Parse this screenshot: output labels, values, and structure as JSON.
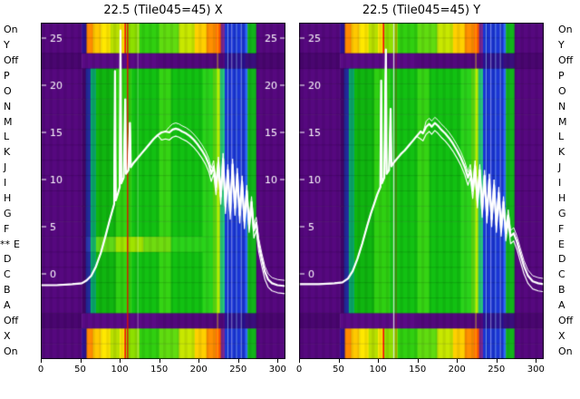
{
  "chart_data": {
    "type": "heatmap",
    "background": "#ffffff",
    "curve_color": "#ffffff",
    "x_range": [
      0,
      310
    ],
    "value_range": [
      -2,
      26
    ],
    "value_axis_ticks": [
      25,
      20,
      15,
      10,
      5,
      0
    ],
    "star_marker": "**",
    "starred_row_index": 14,
    "rows": [
      {
        "label": "On",
        "type": "hot"
      },
      {
        "label": "Y",
        "type": "hot"
      },
      {
        "label": "Off",
        "type": "off"
      },
      {
        "label": "P",
        "type": "normal"
      },
      {
        "label": "O",
        "type": "normal"
      },
      {
        "label": "N",
        "type": "normal"
      },
      {
        "label": "M",
        "type": "normal"
      },
      {
        "label": "L",
        "type": "normal"
      },
      {
        "label": "K",
        "type": "normal"
      },
      {
        "label": "J",
        "type": "normal"
      },
      {
        "label": "I",
        "type": "normal"
      },
      {
        "label": "H",
        "type": "normal"
      },
      {
        "label": "G",
        "type": "normal"
      },
      {
        "label": "F",
        "type": "normal"
      },
      {
        "label": "E",
        "type": "normal"
      },
      {
        "label": "D",
        "type": "normal"
      },
      {
        "label": "C",
        "type": "normal"
      },
      {
        "label": "B",
        "type": "normal"
      },
      {
        "label": "A",
        "type": "normal"
      },
      {
        "label": "Off",
        "type": "off"
      },
      {
        "label": "X",
        "type": "hot"
      },
      {
        "label": "On",
        "type": "hot"
      }
    ],
    "segment_maps": {
      "normal": [
        [
          0,
          52,
          "#56087f"
        ],
        [
          52,
          57,
          "#3f0566"
        ],
        [
          57,
          63,
          "#232a9c"
        ],
        [
          63,
          70,
          "#0aa86c"
        ],
        [
          70,
          95,
          "#10b510"
        ],
        [
          95,
          115,
          "#2fd012"
        ],
        [
          115,
          150,
          "#12c112"
        ],
        [
          150,
          165,
          "#35d414"
        ],
        [
          165,
          205,
          "#12c112"
        ],
        [
          205,
          218,
          "#2ad31a"
        ],
        [
          218,
          224,
          "#5cdc12"
        ],
        [
          224,
          227,
          "#a8e800"
        ],
        [
          227,
          233,
          "#28c87c"
        ],
        [
          233,
          259,
          "#1a35d4"
        ],
        [
          259,
          262,
          "#2e6cf0"
        ],
        [
          262,
          273,
          "#12b51a"
        ],
        [
          273,
          310,
          "#56087f"
        ]
      ],
      "hot": [
        [
          0,
          52,
          "#56087f"
        ],
        [
          52,
          58,
          "#2a1190"
        ],
        [
          58,
          66,
          "#ff8a00"
        ],
        [
          66,
          76,
          "#ffc800"
        ],
        [
          76,
          88,
          "#ffe800"
        ],
        [
          88,
          100,
          "#b8e000"
        ],
        [
          100,
          106,
          "#ffe800"
        ],
        [
          106,
          108,
          "#f01000"
        ],
        [
          108,
          125,
          "#8ee000"
        ],
        [
          125,
          150,
          "#30d010"
        ],
        [
          150,
          175,
          "#60dc10"
        ],
        [
          175,
          195,
          "#c8e800"
        ],
        [
          195,
          210,
          "#ffd000"
        ],
        [
          210,
          222,
          "#ff9000"
        ],
        [
          222,
          228,
          "#ff5a00"
        ],
        [
          228,
          233,
          "#7a2890"
        ],
        [
          233,
          259,
          "#1a35d4"
        ],
        [
          259,
          262,
          "#2e6cf0"
        ],
        [
          262,
          273,
          "#12b51a"
        ],
        [
          273,
          310,
          "#56087f"
        ]
      ],
      "off": [
        [
          0,
          52,
          "#4a0670"
        ],
        [
          52,
          150,
          "#5a0a86"
        ],
        [
          150,
          233,
          "#52087c"
        ],
        [
          233,
          259,
          "#2a1190"
        ],
        [
          259,
          273,
          "#3a0f7c"
        ],
        [
          273,
          310,
          "#4a0670"
        ]
      ],
      "bright": [
        [
          0,
          52,
          "#56087f"
        ],
        [
          52,
          57,
          "#3f0566"
        ],
        [
          57,
          63,
          "#2a38b0"
        ],
        [
          63,
          70,
          "#18b86c"
        ],
        [
          70,
          95,
          "#60d818"
        ],
        [
          95,
          130,
          "#a0e400"
        ],
        [
          130,
          165,
          "#70dc10"
        ],
        [
          165,
          205,
          "#2ad31a"
        ],
        [
          205,
          218,
          "#2ad31a"
        ],
        [
          218,
          224,
          "#5cdc12"
        ],
        [
          224,
          227,
          "#a8e800"
        ],
        [
          227,
          233,
          "#28c87c"
        ],
        [
          233,
          259,
          "#1a35d4"
        ],
        [
          259,
          262,
          "#2e6cf0"
        ],
        [
          262,
          273,
          "#12b51a"
        ],
        [
          273,
          310,
          "#56087f"
        ]
      ]
    },
    "panels": [
      {
        "title": "22.5 (Tile045=45) X",
        "x_ticks": [
          0,
          50,
          100,
          150,
          200,
          250,
          300
        ],
        "inner_y_ticks": [
          25,
          20,
          15,
          10,
          5,
          0
        ],
        "right_edge_ticks": [
          25,
          20,
          15,
          10
        ],
        "row_overrides": {
          "14": "bright"
        },
        "vlines": [
          {
            "x": 110,
            "color": "#e01000",
            "alpha": 0.85,
            "width": 1.6
          },
          {
            "x": 123,
            "color": "#ffffff",
            "alpha": 0.35,
            "width": 1
          },
          {
            "x": 224,
            "color": "#fff200",
            "alpha": 0.5,
            "width": 1.2
          },
          {
            "x": 237,
            "color": "#a8dcff",
            "alpha": 0.6,
            "width": 1
          },
          {
            "x": 242,
            "color": "#ffffff",
            "alpha": 0.45,
            "width": 1
          },
          {
            "x": 248,
            "color": "#a8dcff",
            "alpha": 0.55,
            "width": 1
          },
          {
            "x": 254,
            "color": "#e0f4ff",
            "alpha": 0.5,
            "width": 1
          }
        ],
        "curve": [
          [
            0,
            -1.2
          ],
          [
            20,
            -1.2
          ],
          [
            40,
            -1.1
          ],
          [
            52,
            -1.0
          ],
          [
            58,
            -0.7
          ],
          [
            64,
            -0.2
          ],
          [
            70,
            0.8
          ],
          [
            76,
            2.2
          ],
          [
            82,
            4.0
          ],
          [
            87,
            5.6
          ],
          [
            91,
            6.8
          ],
          [
            93,
            7.4
          ],
          [
            94,
            21.5
          ],
          [
            95,
            7.8
          ],
          [
            98,
            8.6
          ],
          [
            100,
            9.2
          ],
          [
            101,
            25.8
          ],
          [
            102,
            9.6
          ],
          [
            105,
            10.2
          ],
          [
            107,
            18.5
          ],
          [
            108,
            10.6
          ],
          [
            111,
            11.0
          ],
          [
            113,
            16.0
          ],
          [
            114,
            11.3
          ],
          [
            117,
            11.7
          ],
          [
            120,
            12.0
          ],
          [
            124,
            12.4
          ],
          [
            128,
            12.8
          ],
          [
            133,
            13.3
          ],
          [
            138,
            13.8
          ],
          [
            143,
            14.3
          ],
          [
            148,
            14.7
          ],
          [
            153,
            15.0
          ],
          [
            158,
            15.1
          ],
          [
            163,
            15.0
          ],
          [
            167,
            15.3
          ],
          [
            171,
            15.4
          ],
          [
            175,
            15.3
          ],
          [
            179,
            15.1
          ],
          [
            184,
            14.9
          ],
          [
            189,
            14.6
          ],
          [
            194,
            14.2
          ],
          [
            199,
            13.7
          ],
          [
            204,
            13.1
          ],
          [
            209,
            12.4
          ],
          [
            213,
            11.6
          ],
          [
            216,
            10.6
          ],
          [
            219,
            11.4
          ],
          [
            222,
            9.2
          ],
          [
            225,
            11.8
          ],
          [
            228,
            8.2
          ],
          [
            231,
            12.2
          ],
          [
            234,
            7.2
          ],
          [
            237,
            11.0
          ],
          [
            240,
            6.6
          ],
          [
            243,
            11.6
          ],
          [
            246,
            7.0
          ],
          [
            249,
            10.6
          ],
          [
            252,
            6.2
          ],
          [
            255,
            9.8
          ],
          [
            258,
            5.6
          ],
          [
            261,
            8.8
          ],
          [
            264,
            5.2
          ],
          [
            267,
            7.6
          ],
          [
            270,
            4.6
          ],
          [
            273,
            5.4
          ],
          [
            276,
            3.2
          ],
          [
            280,
            1.6
          ],
          [
            284,
            0.2
          ],
          [
            288,
            -0.6
          ],
          [
            293,
            -1.0
          ],
          [
            300,
            -1.2
          ],
          [
            310,
            -1.3
          ]
        ]
      },
      {
        "title": "22.5 (Tile045=45) Y",
        "x_ticks": [
          0,
          50,
          100,
          150,
          200,
          250,
          300
        ],
        "inner_y_ticks": [
          25,
          20,
          15,
          10,
          5,
          0
        ],
        "right_edge_ticks": [],
        "row_overrides": {},
        "vlines": [
          {
            "x": 120,
            "color": "#f0f0f0",
            "alpha": 0.8,
            "width": 1.4
          },
          {
            "x": 123,
            "color": "#d01000",
            "alpha": 0.45,
            "width": 1
          },
          {
            "x": 224,
            "color": "#fff200",
            "alpha": 0.5,
            "width": 1.2
          },
          {
            "x": 237,
            "color": "#a8dcff",
            "alpha": 0.6,
            "width": 1
          },
          {
            "x": 243,
            "color": "#ffffff",
            "alpha": 0.45,
            "width": 1
          },
          {
            "x": 249,
            "color": "#a8dcff",
            "alpha": 0.55,
            "width": 1
          },
          {
            "x": 255,
            "color": "#e0f4ff",
            "alpha": 0.5,
            "width": 1
          }
        ],
        "curve": [
          [
            0,
            -1.1
          ],
          [
            25,
            -1.1
          ],
          [
            45,
            -1.0
          ],
          [
            55,
            -0.9
          ],
          [
            62,
            -0.5
          ],
          [
            68,
            0.3
          ],
          [
            74,
            1.6
          ],
          [
            80,
            3.2
          ],
          [
            86,
            5.0
          ],
          [
            91,
            6.4
          ],
          [
            95,
            7.4
          ],
          [
            99,
            8.4
          ],
          [
            103,
            9.2
          ],
          [
            104,
            20.5
          ],
          [
            105,
            9.6
          ],
          [
            108,
            10.2
          ],
          [
            110,
            23.8
          ],
          [
            111,
            10.6
          ],
          [
            114,
            11.0
          ],
          [
            116,
            17.5
          ],
          [
            117,
            11.4
          ],
          [
            120,
            11.8
          ],
          [
            124,
            12.2
          ],
          [
            129,
            12.7
          ],
          [
            134,
            13.1
          ],
          [
            139,
            13.6
          ],
          [
            144,
            14.1
          ],
          [
            149,
            14.6
          ],
          [
            154,
            15.1
          ],
          [
            157,
            14.9
          ],
          [
            161,
            15.6
          ],
          [
            165,
            15.9
          ],
          [
            168,
            15.6
          ],
          [
            172,
            16.0
          ],
          [
            176,
            15.7
          ],
          [
            180,
            15.3
          ],
          [
            185,
            14.9
          ],
          [
            190,
            14.4
          ],
          [
            195,
            13.8
          ],
          [
            200,
            13.1
          ],
          [
            205,
            12.3
          ],
          [
            210,
            11.3
          ],
          [
            214,
            10.2
          ],
          [
            217,
            11.0
          ],
          [
            220,
            8.8
          ],
          [
            223,
            11.4
          ],
          [
            226,
            7.8
          ],
          [
            229,
            11.0
          ],
          [
            232,
            6.8
          ],
          [
            235,
            10.4
          ],
          [
            238,
            6.2
          ],
          [
            241,
            10.0
          ],
          [
            244,
            5.8
          ],
          [
            247,
            9.4
          ],
          [
            250,
            5.2
          ],
          [
            253,
            8.6
          ],
          [
            256,
            4.8
          ],
          [
            259,
            7.6
          ],
          [
            262,
            4.3
          ],
          [
            265,
            6.2
          ],
          [
            268,
            4.0
          ],
          [
            272,
            4.3
          ],
          [
            276,
            3.4
          ],
          [
            280,
            2.2
          ],
          [
            285,
            0.8
          ],
          [
            290,
            -0.2
          ],
          [
            296,
            -0.8
          ],
          [
            303,
            -1.0
          ],
          [
            310,
            -1.1
          ]
        ]
      }
    ]
  }
}
